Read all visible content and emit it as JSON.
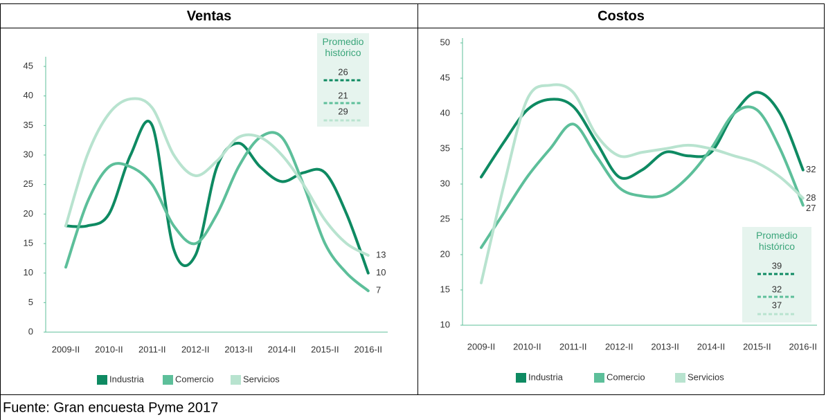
{
  "chart_data": [
    {
      "type": "line",
      "title": "Ventas",
      "categories": [
        "2009-II",
        null,
        "2010-II",
        null,
        "2011-II",
        null,
        "2012-II",
        null,
        "2013-II",
        null,
        "2014-II",
        null,
        "2015-II",
        null,
        "2016-II"
      ],
      "ylim": [
        0,
        45
      ],
      "yticks": [
        0,
        5,
        10,
        15,
        20,
        25,
        30,
        35,
        40,
        45
      ],
      "series": [
        {
          "name": "Industria",
          "color": "#0e8a62",
          "values": [
            18,
            18,
            20,
            30,
            35,
            14,
            13,
            28,
            32,
            28,
            25.5,
            27,
            27,
            20,
            10
          ]
        },
        {
          "name": "Comercio",
          "color": "#5dbf9a",
          "values": [
            11,
            22,
            28,
            28,
            25,
            18,
            15,
            20,
            28,
            33,
            33,
            25,
            15,
            10,
            7
          ]
        },
        {
          "name": "Servicios",
          "color": "#b8e3cf",
          "values": [
            18,
            30,
            37,
            39.5,
            38,
            30,
            26.5,
            29,
            33,
            33,
            30,
            25,
            19,
            15,
            13
          ]
        }
      ],
      "average": {
        "title": "Promedio histórico",
        "values": [
          26,
          21,
          29
        ]
      }
    },
    {
      "type": "line",
      "title": "Costos",
      "categories": [
        "2009-II",
        null,
        "2010-II",
        null,
        "2011-II",
        null,
        "2012-II",
        null,
        "2013-II",
        null,
        "2014-II",
        null,
        "2015-II",
        null,
        "2016-II"
      ],
      "ylim": [
        10,
        50
      ],
      "yticks": [
        10,
        15,
        20,
        25,
        30,
        35,
        40,
        45,
        50
      ],
      "series": [
        {
          "name": "Industria",
          "color": "#0e8a62",
          "values": [
            31,
            36,
            40.5,
            42,
            41,
            36,
            31,
            32,
            34.5,
            34,
            34.5,
            40,
            43,
            40,
            32
          ]
        },
        {
          "name": "Comercio",
          "color": "#5dbf9a",
          "values": [
            21,
            26,
            31,
            35,
            38.5,
            34,
            29.5,
            28.3,
            28.5,
            31,
            35,
            40,
            40.5,
            35,
            27
          ]
        },
        {
          "name": "Servicios",
          "color": "#b8e3cf",
          "values": [
            16,
            30,
            42,
            44,
            43,
            37,
            34,
            34.5,
            35,
            35.5,
            35,
            34,
            33,
            31,
            28
          ]
        }
      ],
      "average": {
        "title": "Promedio histórico",
        "values": [
          39,
          32,
          37
        ]
      }
    }
  ],
  "source": "Fuente: Gran encuesta Pyme 2017"
}
